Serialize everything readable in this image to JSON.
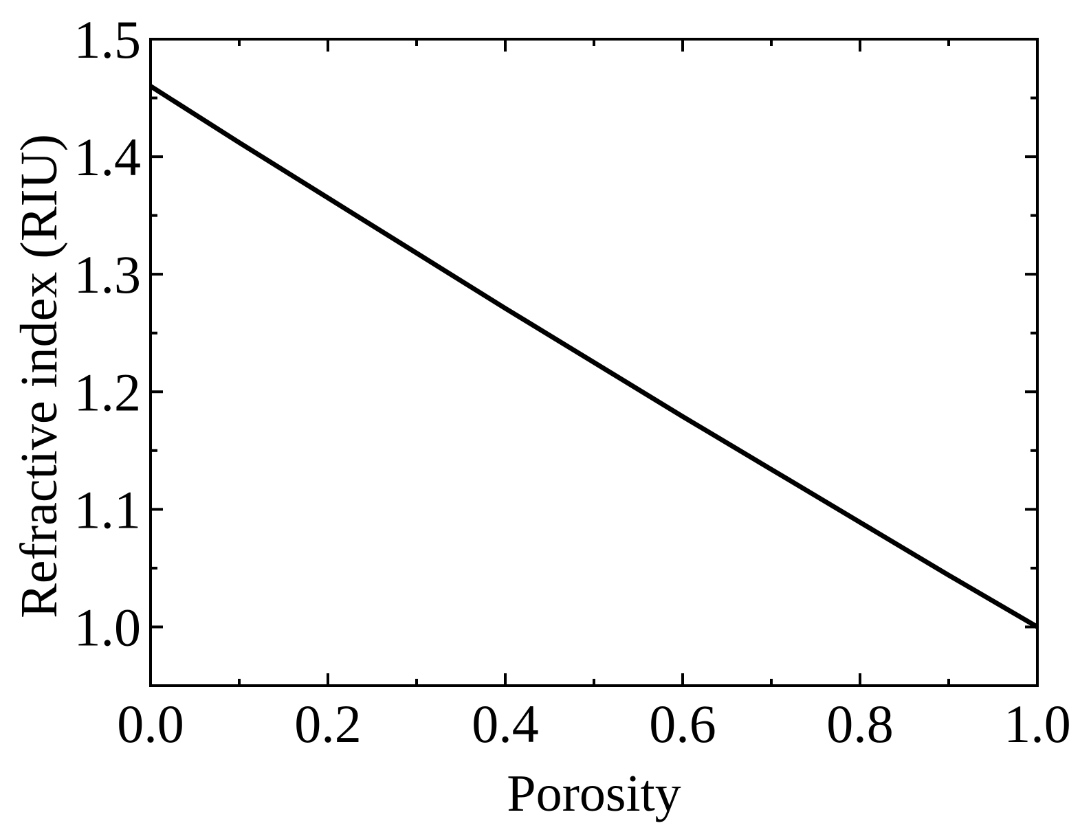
{
  "chart_data": {
    "type": "line",
    "title": "",
    "xlabel": "Porosity",
    "ylabel": "Refractive index (RIU)",
    "xlim": [
      0.0,
      1.0
    ],
    "ylim": [
      0.95,
      1.5
    ],
    "x_ticks": [
      "0.0",
      "0.2",
      "0.4",
      "0.6",
      "0.8",
      "1.0"
    ],
    "y_ticks": [
      "1.0",
      "1.1",
      "1.2",
      "1.3",
      "1.4",
      "1.5"
    ],
    "grid": false,
    "legend": "none",
    "series": [
      {
        "color": "#000000",
        "x": [
          0.0,
          0.1,
          0.2,
          0.3,
          0.4,
          0.5,
          0.6,
          0.7,
          0.8,
          0.9,
          1.0
        ],
        "y": [
          1.46,
          1.412,
          1.365,
          1.318,
          1.271,
          1.225,
          1.179,
          1.134,
          1.089,
          1.044,
          1.0
        ]
      }
    ]
  }
}
